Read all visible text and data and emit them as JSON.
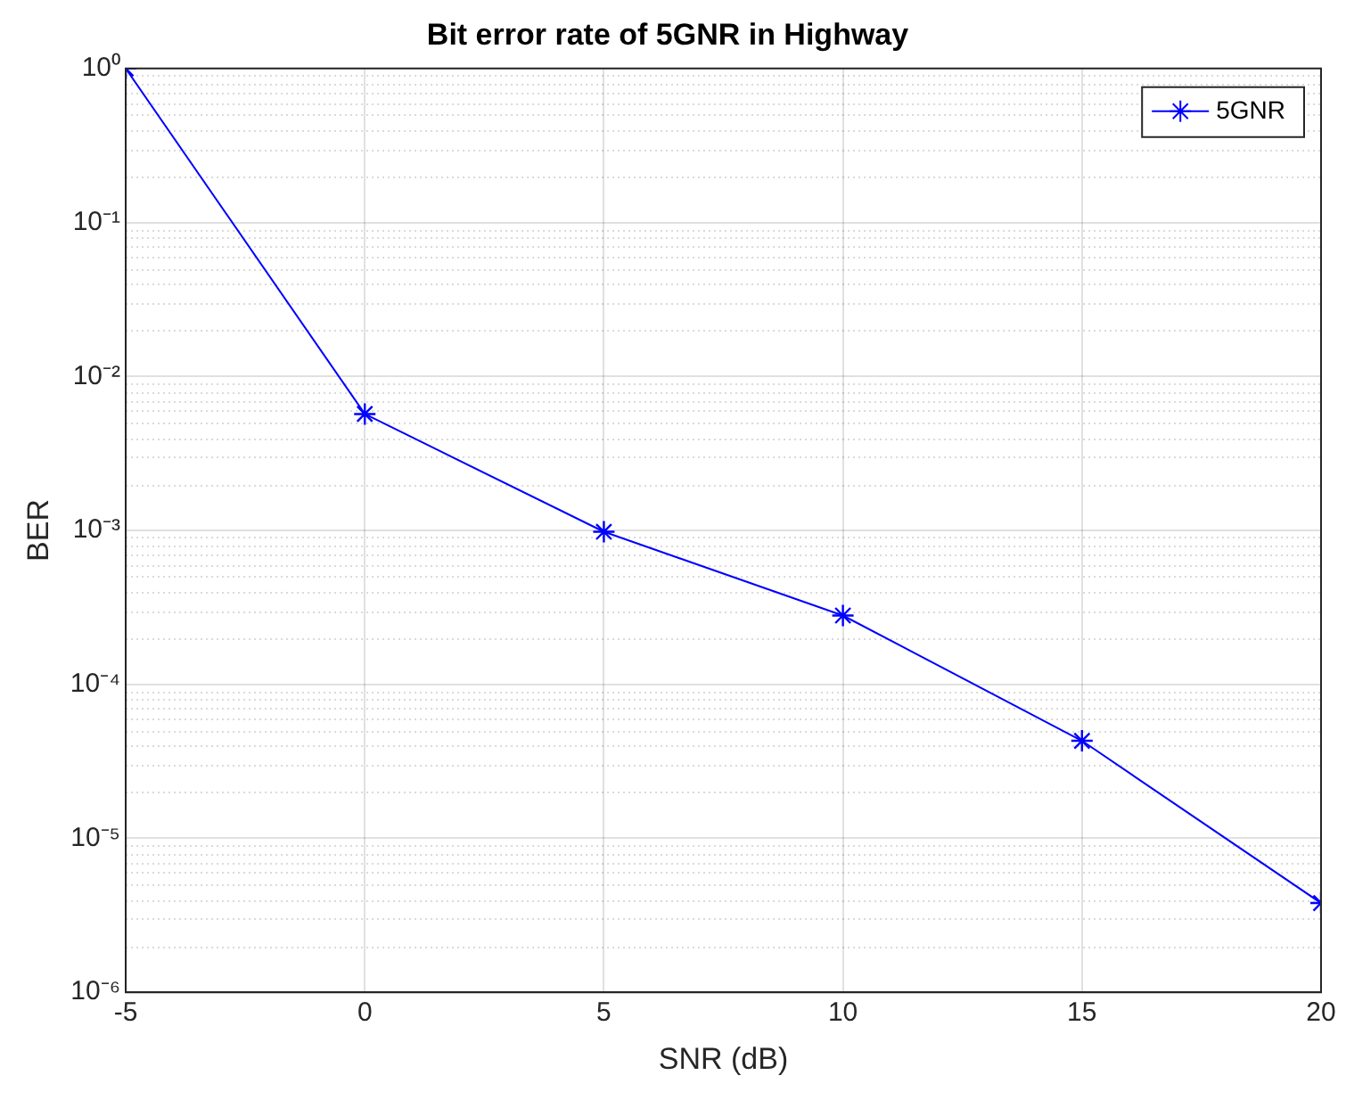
{
  "chart_data": {
    "type": "line",
    "title": "Bit error rate of 5GNR in Highway",
    "xlabel": "SNR (dB)",
    "ylabel": "BER",
    "x": [
      -5,
      0,
      5,
      10,
      15,
      20
    ],
    "series": [
      {
        "name": "5GNR",
        "color": "#0000ff",
        "values": [
          1,
          0.0057,
          0.00098,
          0.00028,
          4.3e-05,
          3.8e-06
        ]
      }
    ],
    "xlim": [
      -5,
      20
    ],
    "xticks": [
      -5,
      0,
      5,
      10,
      15,
      20
    ],
    "ylim": [
      1e-06,
      1
    ],
    "yticks": [
      {
        "value": 1,
        "label": "10⁰"
      },
      {
        "value": 0.1,
        "label": "10⁻¹"
      },
      {
        "value": 0.01,
        "label": "10⁻²"
      },
      {
        "value": 0.001,
        "label": "10⁻³"
      },
      {
        "value": 0.0001,
        "label": "10⁻⁴"
      },
      {
        "value": 1e-05,
        "label": "10⁻⁵"
      },
      {
        "value": 1e-06,
        "label": "10⁻⁶"
      }
    ],
    "log": "y",
    "grid": true,
    "legend": "top right",
    "marker": "cross",
    "line_style": "solid"
  }
}
